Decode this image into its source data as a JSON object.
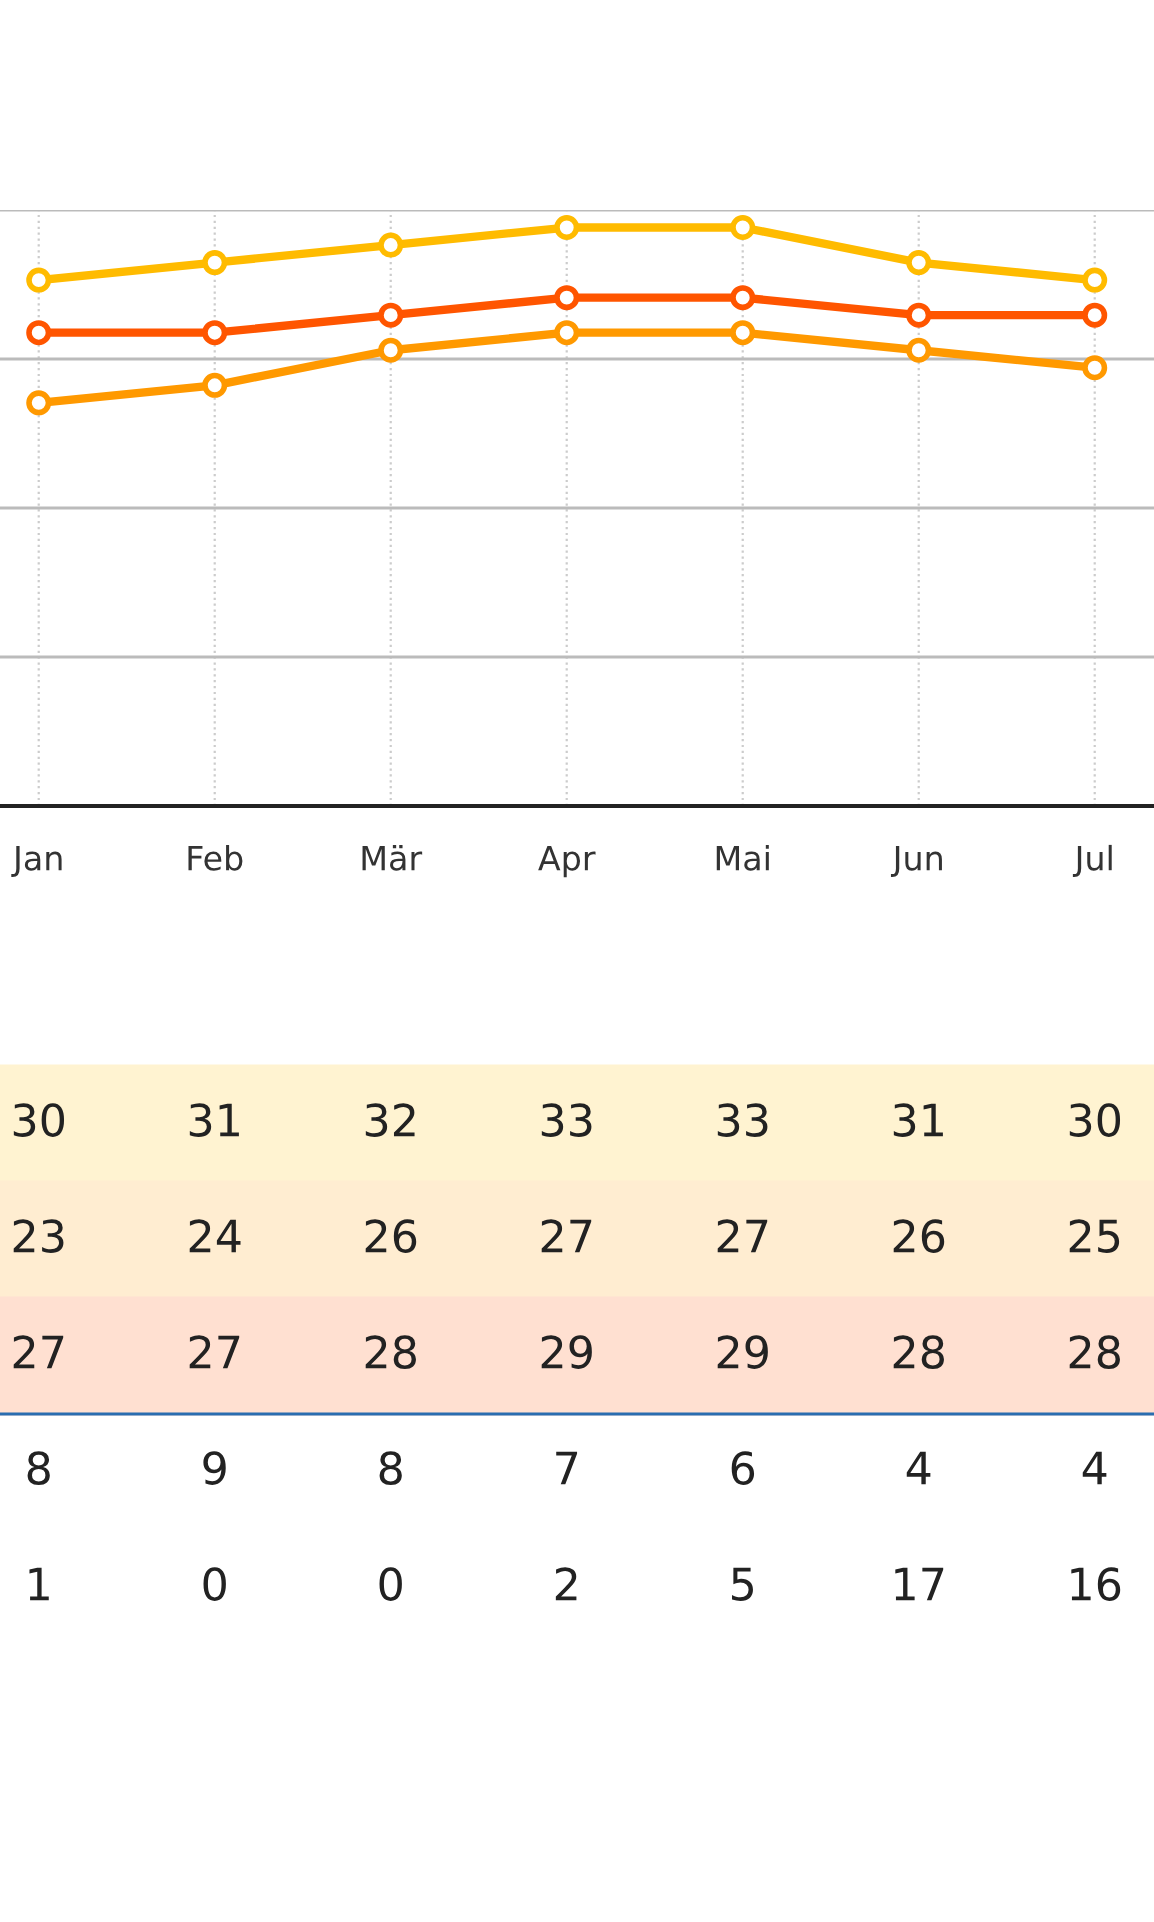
{
  "chart_data": {
    "type": "line",
    "categories": [
      "Jan",
      "Feb",
      "Mär",
      "Apr",
      "Mai",
      "Jun",
      "Jul"
    ],
    "series": [
      {
        "color": "#ffbb00",
        "values": [
          30,
          31,
          32,
          33,
          33,
          31,
          30
        ]
      },
      {
        "color": "#ff9900",
        "values": [
          23,
          24,
          26,
          27,
          27,
          26,
          25
        ]
      },
      {
        "color": "#ff5500",
        "values": [
          27,
          27,
          28,
          29,
          29,
          28,
          28
        ]
      }
    ],
    "ylim": [
      0,
      34
    ],
    "yticks": [
      {
        "value": 0,
        "label": null
      },
      {
        "value": 8.5,
        "label": null
      },
      {
        "value": 17,
        "label": null
      },
      {
        "value": 25.5,
        "label": null
      },
      {
        "value": 34,
        "label": null
      }
    ],
    "grid": true,
    "marker": "circle",
    "line_style": "solid",
    "data_labels": true,
    "annotations": [
      "8",
      "9",
      "8",
      "7",
      "6",
      "4",
      "4",
      "1",
      "0",
      "0",
      "2",
      "5",
      "17",
      "16"
    ]
  }
}
